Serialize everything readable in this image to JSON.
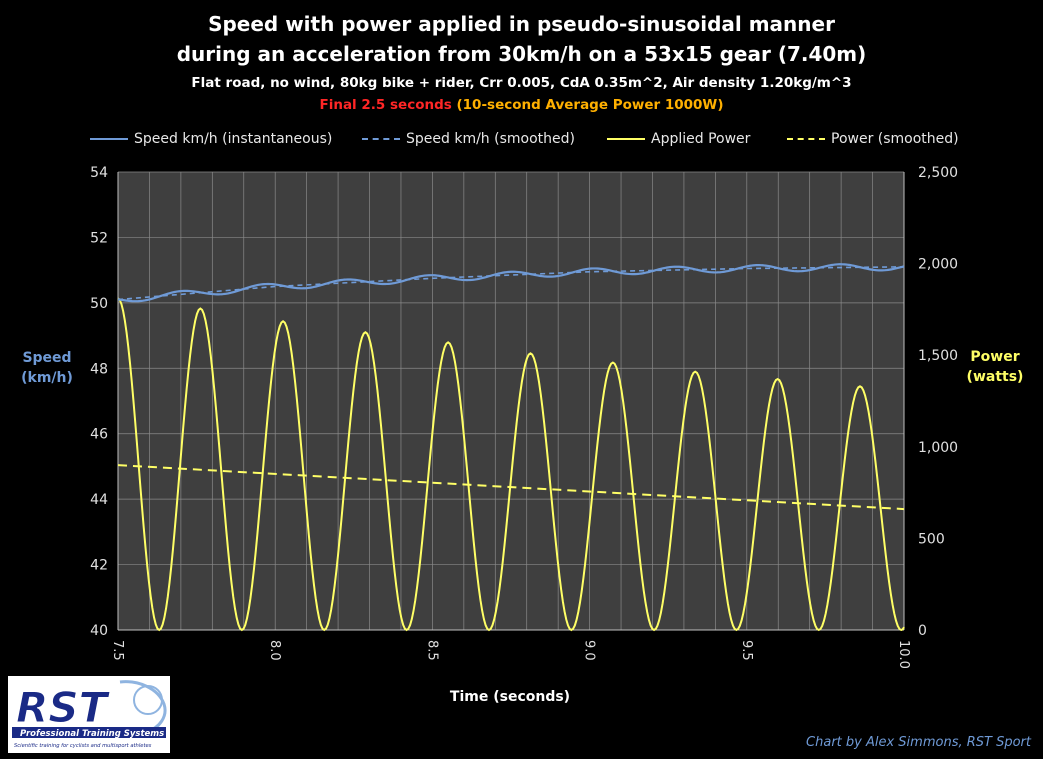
{
  "title_line1": "Speed with power applied in pseudo-sinusoidal manner",
  "title_line2": "during an acceleration from 30km/h on a 53x15 gear (7.40m)",
  "subtitle": "Flat road, no wind, 80kg bike + rider, Crr 0.005, CdA 0.35m^2, Air density 1.20kg/m^3",
  "highlight_red": "Final 2.5 seconds",
  "highlight_orange": "(10-second Average Power 1000W)",
  "legend": [
    {
      "label": "Speed km/h (instantaneous)",
      "color": "#6f9ad6",
      "style": "solid"
    },
    {
      "label": "Speed km/h (smoothed)",
      "color": "#6f9ad6",
      "style": "dashed"
    },
    {
      "label": "Applied Power",
      "color": "#ffff66",
      "style": "solid"
    },
    {
      "label": "Power (smoothed)",
      "color": "#ffff66",
      "style": "dashed"
    }
  ],
  "y_left_label_line1": "Speed",
  "y_left_label_line2": "(km/h)",
  "y_right_label_line1": "Power",
  "y_right_label_line2": "(watts)",
  "x_label": "Time (seconds)",
  "logo_text": "RST",
  "logo_sub1": "Professional Training Systems",
  "logo_sub2": "Scientific training for cyclists and multisport athletes",
  "credit": "Chart by Alex Simmons, RST Sport",
  "colors": {
    "speed": "#6f9ad6",
    "power": "#ffff66",
    "plot_bg": "#3f3f3f",
    "grid": "#8a8a8a"
  },
  "chart_data": {
    "type": "line",
    "x_range": [
      7.5,
      10.0
    ],
    "x_ticks": [
      "7.5",
      "8.0",
      "8.5",
      "9.0",
      "9.5",
      "10.0"
    ],
    "y_left_range": [
      40,
      54
    ],
    "y_left_ticks": [
      "40",
      "42",
      "44",
      "46",
      "48",
      "50",
      "52",
      "54"
    ],
    "y_right_range": [
      0,
      2500
    ],
    "y_right_ticks": [
      "0",
      "500",
      "1,000",
      "1,500",
      "2,000",
      "2,500"
    ],
    "grid": true,
    "legend_position": "top",
    "power_peaks": [
      {
        "t": 7.5,
        "w": 1810
      },
      {
        "t": 7.762,
        "w": 1755
      },
      {
        "t": 8.025,
        "w": 1685
      },
      {
        "t": 8.287,
        "w": 1625
      },
      {
        "t": 8.55,
        "w": 1570
      },
      {
        "t": 8.812,
        "w": 1510
      },
      {
        "t": 9.074,
        "w": 1460
      },
      {
        "t": 9.336,
        "w": 1410
      },
      {
        "t": 9.598,
        "w": 1370
      },
      {
        "t": 9.86,
        "w": 1330
      }
    ],
    "power_troughs": [
      {
        "t": 7.631,
        "w": 0
      },
      {
        "t": 7.894,
        "w": 0
      },
      {
        "t": 8.156,
        "w": 0
      },
      {
        "t": 8.418,
        "w": 0
      },
      {
        "t": 8.68,
        "w": 0
      },
      {
        "t": 8.942,
        "w": 0
      },
      {
        "t": 9.205,
        "w": 0
      },
      {
        "t": 9.467,
        "w": 0
      },
      {
        "t": 9.729,
        "w": 0
      },
      {
        "t": 9.991,
        "w": 0
      }
    ],
    "power_smoothed": {
      "x": [
        7.5,
        10.0
      ],
      "y": [
        900,
        660
      ]
    },
    "speed_smoothed": {
      "x": [
        7.5,
        8.0,
        8.5,
        9.0,
        9.5,
        10.0
      ],
      "y": [
        50.1,
        50.5,
        50.75,
        50.95,
        51.05,
        51.1
      ]
    },
    "speed_oscillation_amplitude": 0.1
  }
}
